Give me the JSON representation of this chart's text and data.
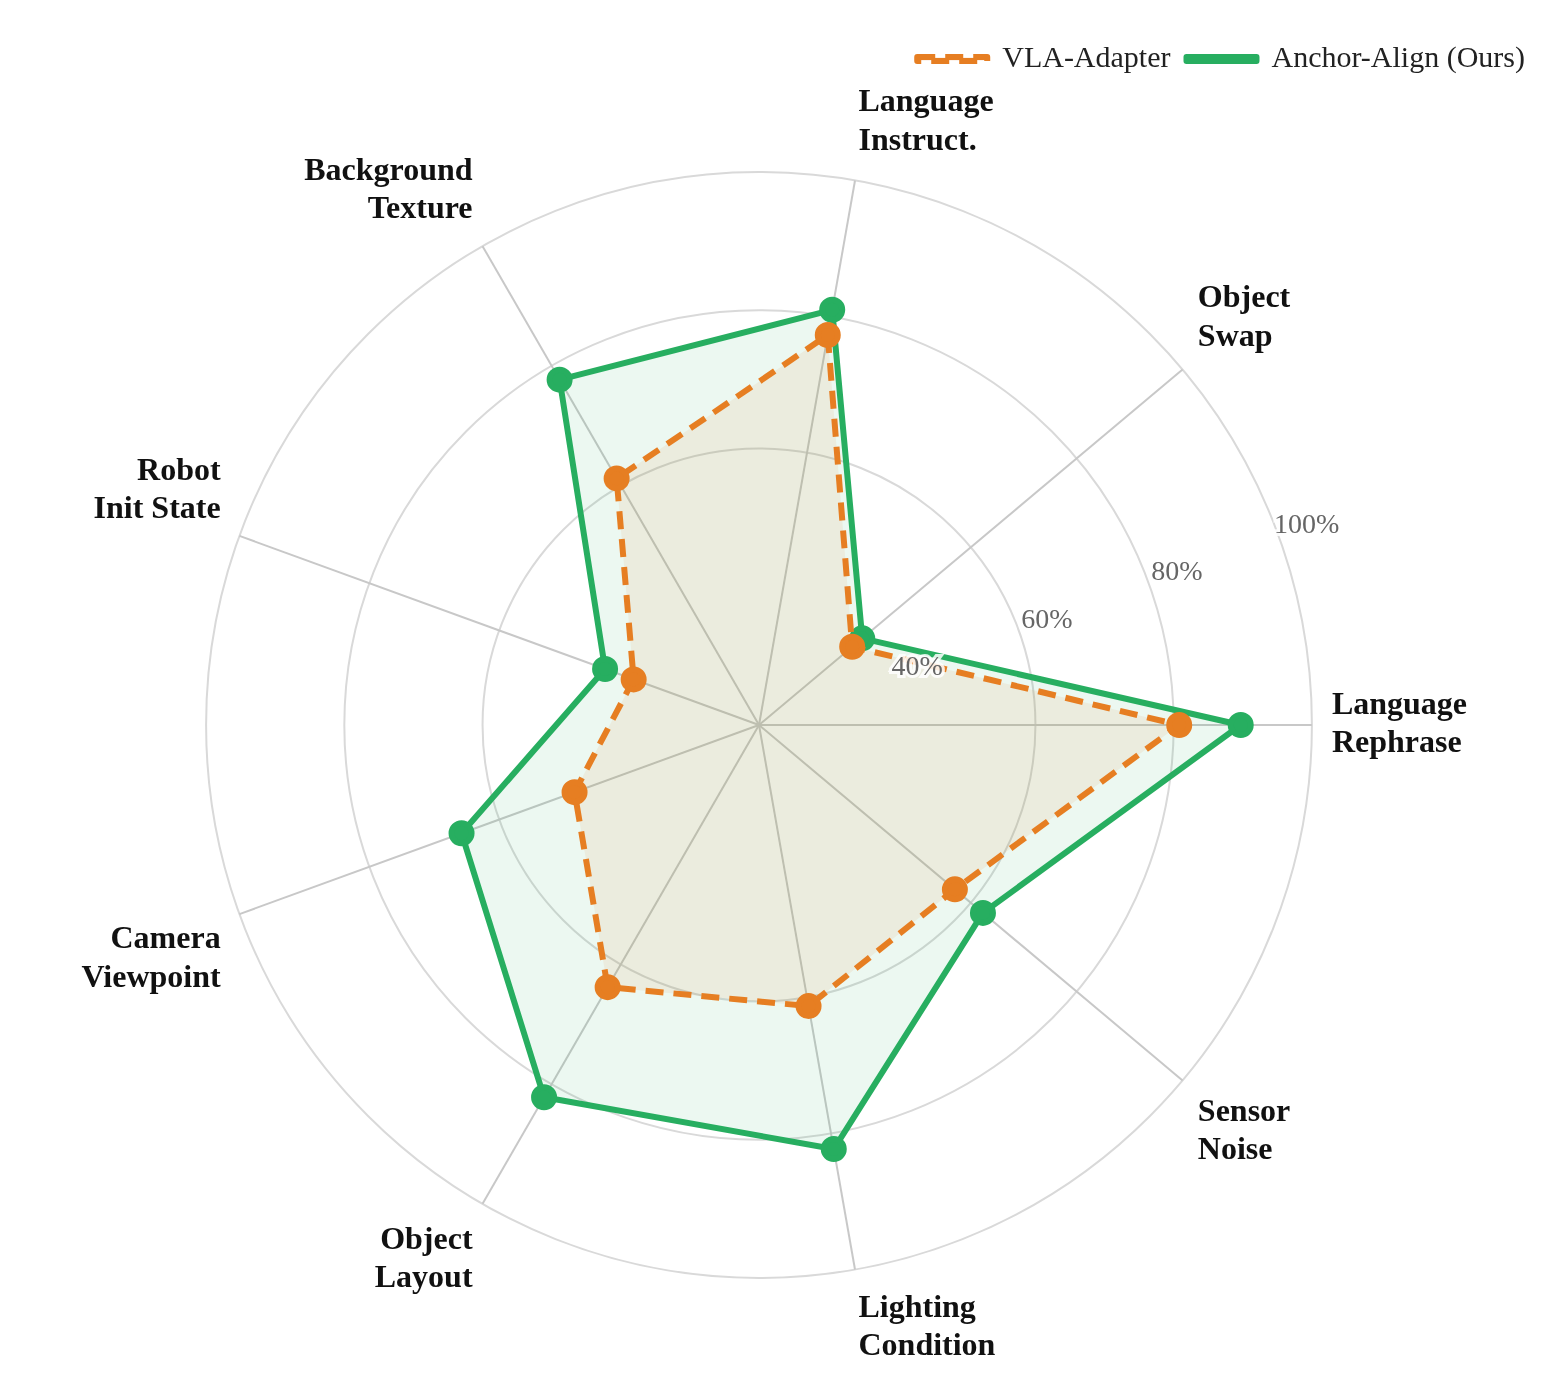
{
  "chart_data": {
    "type": "radar",
    "categories": [
      "Language\nInstruct.",
      "Object\nSwap",
      "Language\nRephrase",
      "Sensor\nNoise",
      "Lighting\nCondition",
      "Object\nLayout",
      "Camera\nViewpoint",
      "Robot\nInit State",
      "Background\nTexture"
    ],
    "series": [
      {
        "name": "VLA-Adapter",
        "color": "#e67e22",
        "line_style": "dashed",
        "values": [
          77.3,
          37.6,
          80.8,
          57,
          61.3,
          63.8,
          48.4,
          39.3,
          61.2
        ]
      },
      {
        "name": "Anchor-Align (Ours)",
        "color": "#27ae60",
        "line_style": "solid",
        "values": [
          81,
          39.5,
          89.7,
          62.3,
          82.3,
          82.2,
          65.8,
          43.7,
          77.7
        ]
      }
    ],
    "ylim": [
      20,
      100
    ],
    "yticks": [
      {
        "value": 40,
        "label": "40%"
      },
      {
        "value": 60,
        "label": "60%"
      },
      {
        "value": 80,
        "label": "80%"
      },
      {
        "value": 100,
        "label": "100%"
      }
    ],
    "grid": true,
    "legend": "top right",
    "marker": "circle"
  }
}
